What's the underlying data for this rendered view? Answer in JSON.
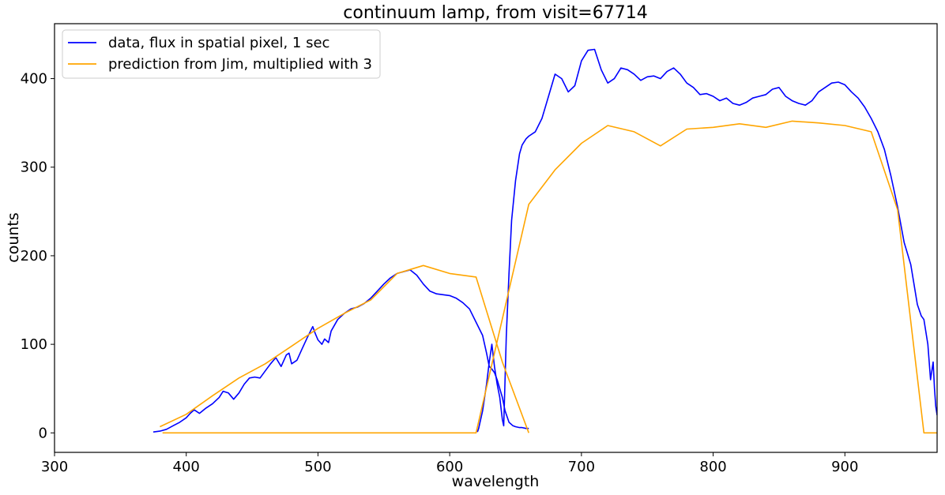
{
  "chart_data": {
    "type": "line",
    "title": "continuum lamp, from visit=67714",
    "xlabel": "wavelength",
    "ylabel": "counts",
    "xlim": [
      300,
      970
    ],
    "ylim": [
      -22,
      462
    ],
    "xticks": [
      300,
      400,
      500,
      600,
      700,
      800,
      900
    ],
    "yticks": [
      0,
      100,
      200,
      300,
      400
    ],
    "legend_position": "top-left",
    "series": [
      {
        "name": "data, flux in spatial pixel, 1 sec",
        "color": "#0000ff",
        "segments": [
          {
            "x": [
              375,
              380,
              385,
              390,
              395,
              400,
              403,
              406,
              410,
              415,
              420,
              425,
              428,
              432,
              436,
              440,
              444,
              448,
              452,
              456,
              460,
              464,
              468,
              472,
              476,
              478,
              480,
              484,
              488,
              492,
              496,
              498,
              500,
              503,
              505,
              508,
              510,
              515,
              520,
              525,
              530,
              535,
              540,
              545,
              550,
              555,
              560,
              565,
              570,
              575,
              580,
              585,
              590,
              595,
              600,
              605,
              610,
              615,
              620,
              625,
              628,
              630,
              632,
              634,
              636,
              638,
              640,
              642,
              645,
              648,
              650,
              653,
              655,
              658,
              660
            ],
            "y": [
              1,
              2,
              4,
              8,
              12,
              17,
              22,
              26,
              22,
              28,
              33,
              40,
              47,
              45,
              38,
              45,
              55,
              62,
              63,
              62,
              70,
              78,
              85,
              75,
              88,
              90,
              78,
              82,
              95,
              108,
              120,
              112,
              105,
              100,
              106,
              102,
              115,
              128,
              135,
              140,
              142,
              146,
              152,
              160,
              168,
              175,
              180,
              182,
              184,
              178,
              168,
              160,
              157,
              156,
              155,
              152,
              147,
              140,
              125,
              110,
              90,
              75,
              72,
              68,
              60,
              50,
              40,
              25,
              12,
              8,
              7,
              6,
              6,
              5,
              5
            ]
          },
          {
            "x": [
              621,
              622,
              625,
              628,
              630,
              632,
              634,
              636,
              638,
              640,
              641,
              642,
              643,
              645,
              647,
              650,
              653,
              655,
              658,
              660,
              665,
              670,
              675,
              680,
              685,
              690,
              695,
              700,
              705,
              710,
              715,
              720,
              725,
              730,
              735,
              740,
              745,
              750,
              755,
              760,
              765,
              770,
              775,
              780,
              785,
              790,
              795,
              800,
              805,
              810,
              815,
              820,
              825,
              830,
              835,
              840,
              845,
              850,
              855,
              860,
              865,
              870,
              875,
              880,
              885,
              890,
              895,
              900,
              905,
              910,
              915,
              920,
              925,
              930,
              935,
              940,
              945,
              950,
              955,
              958,
              960,
              963,
              965,
              967,
              968,
              969,
              970
            ],
            "y": [
              1,
              5,
              25,
              55,
              80,
              100,
              75,
              55,
              40,
              15,
              8,
              60,
              110,
              180,
              240,
              285,
              315,
              325,
              332,
              335,
              340,
              355,
              380,
              405,
              400,
              385,
              392,
              420,
              432,
              433,
              410,
              395,
              400,
              412,
              410,
              405,
              398,
              402,
              403,
              400,
              408,
              412,
              405,
              395,
              390,
              382,
              383,
              380,
              375,
              378,
              372,
              370,
              373,
              378,
              380,
              382,
              388,
              390,
              380,
              375,
              372,
              370,
              375,
              385,
              390,
              395,
              396,
              393,
              385,
              378,
              368,
              355,
              340,
              320,
              290,
              255,
              215,
              190,
              145,
              132,
              128,
              100,
              60,
              80,
              50,
              30,
              20
            ]
          }
        ]
      },
      {
        "name": "prediction from Jim, multiplied with 3",
        "color": "#ffa500",
        "segments": [
          {
            "x": [
              380,
              400,
              420,
              440,
              460,
              480,
              500,
              520,
              540,
              560,
              580,
              600,
              620,
              640,
              660
            ],
            "y": [
              7,
              21,
              42,
              62,
              78,
              98,
              118,
              135,
              150,
              180,
              189,
              180,
              176,
              80,
              0
            ]
          },
          {
            "x": [
              382,
              620,
              660,
              680,
              700,
              720,
              740,
              760,
              780,
              800,
              820,
              840,
              860,
              880,
              900,
              920,
              940,
              960,
              970
            ],
            "y": [
              0,
              0,
              258,
              297,
              327,
              347,
              340,
              324,
              343,
              345,
              349,
              345,
              352,
              350,
              347,
              340,
              252,
              0,
              0
            ]
          }
        ]
      }
    ]
  }
}
